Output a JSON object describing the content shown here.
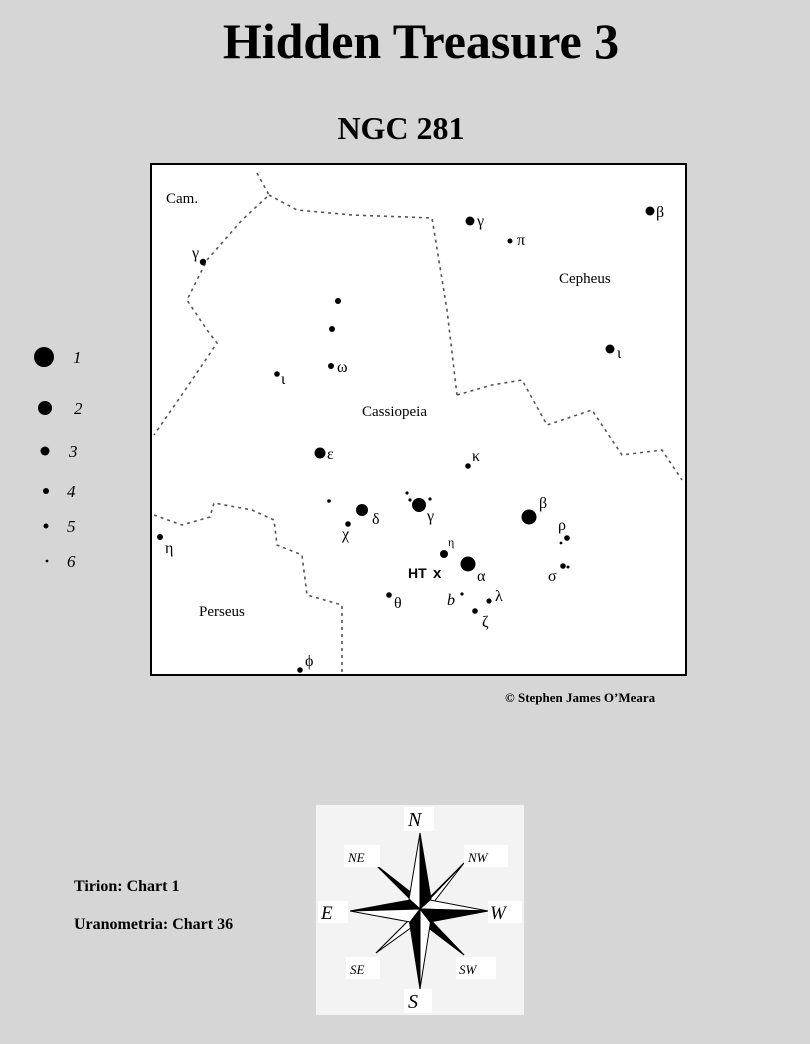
{
  "title": "Hidden Treasure 3",
  "subtitle": "NGC  281",
  "copyright": "© Stephen James O’Meara",
  "chart_refs": {
    "tirion": "Tirion: Chart 1",
    "uranometria": "Uranometria: Chart 36"
  },
  "constellations": {
    "cam": "Cam.",
    "cepheus": "Cepheus",
    "cassiopeia": "Cassiopeia",
    "perseus": "Perseus"
  },
  "stars": [
    {
      "label": "γ",
      "mag": 3
    },
    {
      "label": "π",
      "mag": 5
    },
    {
      "label": "β",
      "mag": 3
    },
    {
      "label": "γ",
      "mag": 4
    },
    {
      "label": "",
      "mag": 5
    },
    {
      "label": "",
      "mag": 5
    },
    {
      "label": "ω",
      "mag": 5
    },
    {
      "label": "ι",
      "mag": 3
    },
    {
      "label": "ι",
      "mag": 5
    },
    {
      "label": "ε",
      "mag": 2
    },
    {
      "label": "κ",
      "mag": 5
    },
    {
      "label": "",
      "mag": 6
    },
    {
      "label": "δ",
      "mag": 2
    },
    {
      "label": "γ",
      "mag": 2
    },
    {
      "label": "β",
      "mag": 1
    },
    {
      "label": "ρ",
      "mag": 5
    },
    {
      "label": "χ",
      "mag": 5
    },
    {
      "label": "η",
      "mag": 5
    },
    {
      "label": "η",
      "mag": 4
    },
    {
      "label": "α",
      "mag": 1
    },
    {
      "label": "σ",
      "mag": 5
    },
    {
      "label": "θ",
      "mag": 5
    },
    {
      "label": "b",
      "mag": 6
    },
    {
      "label": "λ",
      "mag": 5
    },
    {
      "label": "ζ",
      "mag": 5
    },
    {
      "label": "ϕ",
      "mag": 5
    }
  ],
  "target": {
    "label": "HT",
    "marker": "x"
  },
  "legend": [
    {
      "mag": "1"
    },
    {
      "mag": "2"
    },
    {
      "mag": "3"
    },
    {
      "mag": "4"
    },
    {
      "mag": "5"
    },
    {
      "mag": "6"
    }
  ],
  "compass": {
    "n": "N",
    "ne": "NE",
    "nw": "NW",
    "e": "E",
    "w": "W",
    "se": "SE",
    "sw": "SW",
    "s": "S"
  }
}
